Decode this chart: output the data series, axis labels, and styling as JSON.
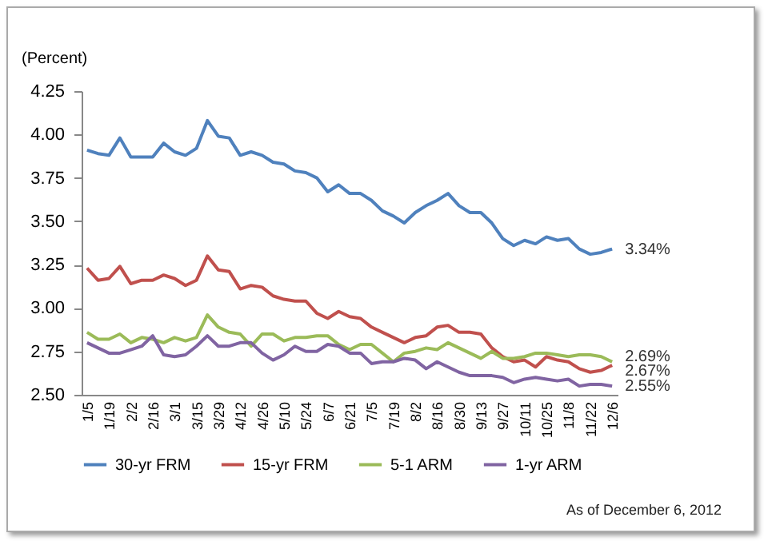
{
  "chart_data": {
    "type": "line",
    "ylabel": "(Percent)",
    "categories": [
      "1/5",
      null,
      "1/19",
      null,
      "2/2",
      null,
      "2/16",
      null,
      "3/1",
      null,
      "3/15",
      null,
      "3/29",
      null,
      "4/12",
      null,
      "4/26",
      null,
      "5/10",
      null,
      "5/24",
      null,
      "6/7",
      null,
      "6/21",
      null,
      "7/5",
      null,
      "7/19",
      null,
      "8/2",
      null,
      "8/16",
      null,
      "8/30",
      null,
      "9/13",
      null,
      "9/27",
      null,
      "10/11",
      null,
      "10/25",
      null,
      "11/8",
      null,
      "11/22",
      null,
      "12/6"
    ],
    "series": [
      {
        "name": "30-yr FRM",
        "color": "#4f81bd",
        "values": [
          3.91,
          3.89,
          3.88,
          3.98,
          3.87,
          3.87,
          3.87,
          3.95,
          3.9,
          3.88,
          3.92,
          4.08,
          3.99,
          3.98,
          3.88,
          3.9,
          3.88,
          3.84,
          3.83,
          3.79,
          3.78,
          3.75,
          3.67,
          3.71,
          3.66,
          3.66,
          3.62,
          3.56,
          3.53,
          3.49,
          3.55,
          3.59,
          3.62,
          3.66,
          3.59,
          3.55,
          3.55,
          3.49,
          3.4,
          3.36,
          3.39,
          3.37,
          3.41,
          3.39,
          3.4,
          3.34,
          3.31,
          3.32,
          3.34
        ]
      },
      {
        "name": "15-yr FRM",
        "color": "#c0504d",
        "values": [
          3.23,
          3.16,
          3.17,
          3.24,
          3.14,
          3.16,
          3.16,
          3.19,
          3.17,
          3.13,
          3.16,
          3.3,
          3.22,
          3.21,
          3.11,
          3.13,
          3.12,
          3.07,
          3.05,
          3.04,
          3.04,
          2.97,
          2.94,
          2.98,
          2.95,
          2.94,
          2.89,
          2.86,
          2.83,
          2.8,
          2.83,
          2.84,
          2.89,
          2.9,
          2.86,
          2.86,
          2.85,
          2.77,
          2.72,
          2.69,
          2.7,
          2.66,
          2.72,
          2.7,
          2.69,
          2.65,
          2.63,
          2.64,
          2.67
        ]
      },
      {
        "name": "5-1 ARM",
        "color": "#9bbb59",
        "values": [
          2.86,
          2.82,
          2.82,
          2.85,
          2.8,
          2.83,
          2.82,
          2.8,
          2.83,
          2.81,
          2.83,
          2.96,
          2.89,
          2.86,
          2.85,
          2.78,
          2.85,
          2.85,
          2.81,
          2.83,
          2.83,
          2.84,
          2.84,
          2.79,
          2.76,
          2.79,
          2.79,
          2.74,
          2.69,
          2.74,
          2.75,
          2.77,
          2.76,
          2.8,
          2.77,
          2.74,
          2.71,
          2.75,
          2.71,
          2.71,
          2.72,
          2.74,
          2.74,
          2.73,
          2.72,
          2.73,
          2.73,
          2.72,
          2.69
        ]
      },
      {
        "name": "1-yr ARM",
        "color": "#8064a2",
        "values": [
          2.8,
          2.77,
          2.74,
          2.74,
          2.76,
          2.78,
          2.84,
          2.73,
          2.72,
          2.73,
          2.78,
          2.84,
          2.78,
          2.78,
          2.8,
          2.8,
          2.74,
          2.7,
          2.73,
          2.78,
          2.75,
          2.75,
          2.79,
          2.78,
          2.74,
          2.74,
          2.68,
          2.69,
          2.69,
          2.71,
          2.7,
          2.65,
          2.69,
          2.66,
          2.63,
          2.61,
          2.61,
          2.61,
          2.6,
          2.57,
          2.59,
          2.6,
          2.59,
          2.58,
          2.59,
          2.55,
          2.56,
          2.56,
          2.55
        ]
      }
    ],
    "ylim": [
      2.5,
      4.25
    ],
    "yticks": [
      {
        "value": 2.5,
        "label": "2.50"
      },
      {
        "value": 2.75,
        "label": "2.75"
      },
      {
        "value": 3.0,
        "label": "3.00"
      },
      {
        "value": 3.25,
        "label": "3.25"
      },
      {
        "value": 3.5,
        "label": "3.50"
      },
      {
        "value": 3.75,
        "label": "3.75"
      },
      {
        "value": 4.0,
        "label": "4.00"
      },
      {
        "value": 4.25,
        "label": "4.25"
      }
    ],
    "grid": false,
    "legend": "bottom",
    "marker": "none",
    "line_style": "solid",
    "annotations": [
      {
        "text": "3.34%",
        "x": "12/6",
        "y": 3.34
      },
      {
        "text": "2.69%",
        "x": "12/6",
        "y": 2.72
      },
      {
        "text": "2.67%",
        "x": "12/6",
        "y": 2.64
      },
      {
        "text": "2.55%",
        "x": "12/6",
        "y": 2.55
      },
      "As of December 6, 2012"
    ]
  }
}
